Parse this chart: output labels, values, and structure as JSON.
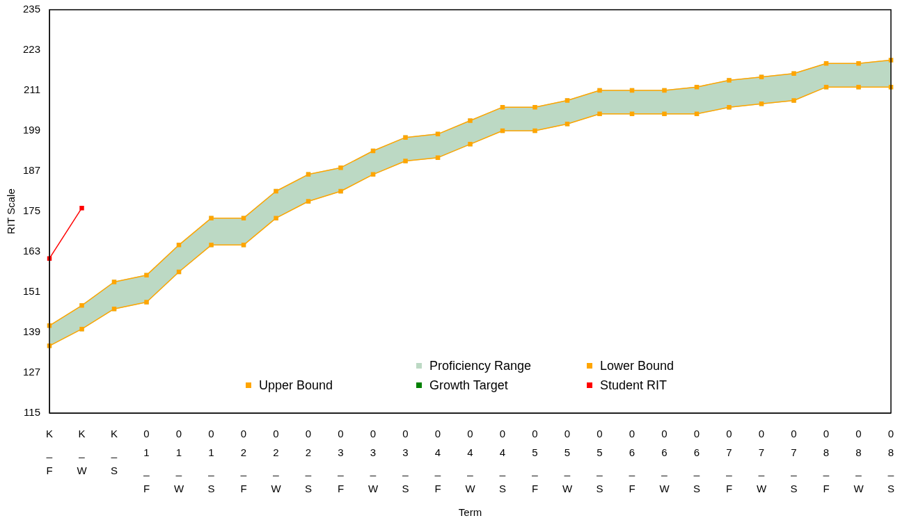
{
  "chart_data": {
    "type": "line",
    "xlabel": "Term",
    "ylabel": "RIT Scale",
    "categories": [
      "K_F",
      "K_W",
      "K_S",
      "01_F",
      "01_W",
      "01_S",
      "02_F",
      "02_W",
      "02_S",
      "03_F",
      "03_W",
      "03_S",
      "04_F",
      "04_W",
      "04_S",
      "05_F",
      "05_W",
      "05_S",
      "06_F",
      "06_W",
      "06_S",
      "07_F",
      "07_W",
      "07_S",
      "08_F",
      "08_W",
      "08_S"
    ],
    "series": [
      {
        "name": "Proficiency Range",
        "type": "area",
        "color": "#bcd9c4",
        "values": [
          null,
          null,
          null,
          null,
          null,
          null,
          null,
          null,
          null,
          null,
          null,
          null,
          null,
          null,
          null,
          null,
          null,
          null,
          null,
          null,
          null,
          null,
          null,
          null,
          null,
          null,
          null
        ],
        "lower": [
          135,
          140,
          146,
          148,
          157,
          165,
          165,
          173,
          178,
          181,
          186,
          190,
          191,
          195,
          199,
          199,
          201,
          204,
          204,
          204,
          204,
          206,
          207,
          208,
          212,
          212,
          212
        ],
        "upper": [
          141,
          147,
          154,
          156,
          165,
          173,
          173,
          181,
          186,
          188,
          193,
          197,
          198,
          202,
          206,
          206,
          208,
          211,
          211,
          211,
          212,
          214,
          215,
          216,
          219,
          219,
          220
        ]
      },
      {
        "name": "Lower Bound",
        "type": "line",
        "color": "#ffa500",
        "values": [
          135,
          140,
          146,
          148,
          157,
          165,
          165,
          173,
          178,
          181,
          186,
          190,
          191,
          195,
          199,
          199,
          201,
          204,
          204,
          204,
          204,
          206,
          207,
          208,
          212,
          212,
          212
        ]
      },
      {
        "name": "Upper Bound",
        "type": "line",
        "color": "#ffa500",
        "values": [
          141,
          147,
          154,
          156,
          165,
          173,
          173,
          181,
          186,
          188,
          193,
          197,
          198,
          202,
          206,
          206,
          208,
          211,
          211,
          211,
          212,
          214,
          215,
          216,
          219,
          219,
          220
        ]
      },
      {
        "name": "Growth Target",
        "type": "line",
        "color": "#008000",
        "values": [
          null,
          null,
          null,
          null,
          null,
          null,
          null,
          null,
          null,
          null,
          null,
          null,
          null,
          null,
          null,
          null,
          null,
          null,
          null,
          null,
          null,
          null,
          null,
          null,
          null,
          null,
          null
        ]
      },
      {
        "name": "Student RIT",
        "type": "line",
        "color": "#ff0000",
        "values": [
          161,
          176,
          null,
          null,
          null,
          null,
          null,
          null,
          null,
          null,
          null,
          null,
          null,
          null,
          null,
          null,
          null,
          null,
          null,
          null,
          null,
          null,
          null,
          null,
          null,
          null,
          null
        ]
      }
    ],
    "ylim": [
      115,
      235
    ],
    "yticks": [
      115,
      127,
      139,
      151,
      163,
      175,
      187,
      199,
      211,
      223,
      235
    ],
    "grid": false,
    "legend": "bottom",
    "marker": "square",
    "line_style": "solid"
  }
}
